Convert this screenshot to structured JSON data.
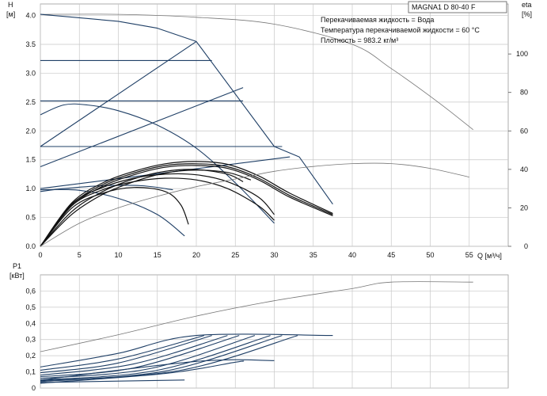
{
  "title": "MAGNA1 D 80-40 F",
  "info_lines": [
    "Перекачиваемая жидкость = Вода",
    "Температура перекачиваемой жидкости = 60 °C",
    "Плотность = 983.2 кг/м³"
  ],
  "chart_data": [
    {
      "type": "line",
      "panel": "head",
      "xlabel": "Q [м³/ч]",
      "ylabel_lines": [
        "H",
        "[м]"
      ],
      "y2label_lines": [
        "eta",
        "[%]"
      ],
      "xlim": [
        0,
        60
      ],
      "ylim": [
        0,
        4.2
      ],
      "y2lim": [
        0,
        126
      ],
      "xticks": [
        0,
        5,
        10,
        15,
        20,
        25,
        30,
        35,
        40,
        45,
        50,
        55
      ],
      "yticks": [
        0.0,
        0.5,
        1.0,
        1.5,
        2.0,
        2.5,
        3.0,
        3.5,
        4.0
      ],
      "ytick_labels": [
        "0.0",
        "0.5",
        "1.0",
        "1.5",
        "2.0",
        "2.5",
        "3.0",
        "3.5",
        "4.0"
      ],
      "y2ticks": [
        0,
        20,
        40,
        60,
        80,
        100
      ],
      "grid": true,
      "series": [
        {
          "role": "max-curve",
          "color": "#777777",
          "points": [
            [
              0,
              4.02
            ],
            [
              10,
              4.02
            ],
            [
              20,
              3.97
            ],
            [
              30,
              3.85
            ],
            [
              40,
              3.5
            ],
            [
              45,
              3.08
            ],
            [
              51,
              2.5
            ],
            [
              55.5,
              2.02
            ]
          ]
        },
        {
          "role": "envelope",
          "color": "#1f3f66",
          "points": [
            [
              0,
              4.02
            ],
            [
              10,
              3.9
            ],
            [
              15,
              3.78
            ],
            [
              20,
              3.55
            ],
            [
              30,
              1.73
            ],
            [
              33.2,
              1.55
            ],
            [
              37.5,
              0.73
            ]
          ]
        },
        {
          "role": "const-curve",
          "color": "#1f3f66",
          "points": [
            [
              0,
              3.22
            ],
            [
              22,
              3.22
            ]
          ]
        },
        {
          "role": "const-curve",
          "color": "#1f3f66",
          "points": [
            [
              0,
              2.52
            ],
            [
              26,
              2.52
            ]
          ]
        },
        {
          "role": "const-curve",
          "color": "#1f3f66",
          "points": [
            [
              0,
              1.73
            ],
            [
              31,
              1.73
            ]
          ]
        },
        {
          "role": "prop-curve",
          "color": "#1f3f66",
          "points": [
            [
              0,
              1.73
            ],
            [
              20,
              3.55
            ]
          ]
        },
        {
          "role": "prop-curve",
          "color": "#1f3f66",
          "points": [
            [
              0,
              1.38
            ],
            [
              26,
              2.75
            ]
          ]
        },
        {
          "role": "prop-curve",
          "color": "#1f3f66",
          "points": [
            [
              0,
              1.0
            ],
            [
              32,
              1.55
            ]
          ]
        },
        {
          "role": "speed-curve",
          "color": "#1f3f66",
          "points": [
            [
              0,
              2.28
            ],
            [
              3,
              2.45
            ],
            [
              6,
              2.45
            ],
            [
              10,
              2.35
            ],
            [
              15,
              2.1
            ],
            [
              20,
              1.7
            ],
            [
              25,
              1.1
            ],
            [
              30,
              0.4
            ]
          ]
        },
        {
          "role": "speed-curve",
          "color": "#1f3f66",
          "points": [
            [
              0,
              0.98
            ],
            [
              5,
              0.97
            ],
            [
              10,
              0.83
            ],
            [
              15,
              0.55
            ],
            [
              18.5,
              0.18
            ]
          ]
        },
        {
          "role": "speed-curve",
          "color": "#1f3f66",
          "points": [
            [
              0,
              0.95
            ],
            [
              3,
              1.0
            ],
            [
              8,
              1.05
            ],
            [
              13,
              1.05
            ],
            [
              17,
              0.98
            ]
          ]
        },
        {
          "role": "op-curve",
          "color": "#111111",
          "points": [
            [
              0,
              0
            ],
            [
              4,
              0.75
            ],
            [
              8,
              1.1
            ],
            [
              12,
              1.3
            ],
            [
              16,
              1.43
            ],
            [
              20,
              1.47
            ],
            [
              24,
              1.42
            ],
            [
              28,
              1.22
            ],
            [
              32,
              0.92
            ],
            [
              37.5,
              0.57
            ]
          ]
        },
        {
          "role": "op-curve",
          "color": "#111111",
          "points": [
            [
              0,
              0
            ],
            [
              4,
              0.72
            ],
            [
              8,
              1.07
            ],
            [
              12,
              1.27
            ],
            [
              16,
              1.4
            ],
            [
              20,
              1.43
            ],
            [
              24,
              1.38
            ],
            [
              28,
              1.18
            ],
            [
              32,
              0.88
            ],
            [
              37.5,
              0.55
            ]
          ]
        },
        {
          "role": "op-curve",
          "color": "#111111",
          "points": [
            [
              0,
              0
            ],
            [
              4,
              0.7
            ],
            [
              8,
              1.04
            ],
            [
              12,
              1.24
            ],
            [
              16,
              1.37
            ],
            [
              20,
              1.4
            ],
            [
              24,
              1.35
            ],
            [
              28,
              1.15
            ],
            [
              32,
              0.85
            ],
            [
              37.5,
              0.53
            ]
          ]
        },
        {
          "role": "op-curve",
          "color": "#111111",
          "points": [
            [
              0,
              0
            ],
            [
              4,
              0.73
            ],
            [
              8,
              1.02
            ],
            [
              12,
              1.18
            ],
            [
              16,
              1.25
            ],
            [
              20,
              1.24
            ],
            [
              24,
              1.12
            ],
            [
              28,
              0.85
            ],
            [
              30,
              0.55
            ]
          ]
        },
        {
          "role": "op-curve",
          "color": "#111111",
          "points": [
            [
              0,
              0
            ],
            [
              4,
              0.7
            ],
            [
              8,
              0.98
            ],
            [
              12,
              1.12
            ],
            [
              16,
              1.18
            ],
            [
              20,
              1.15
            ],
            [
              24,
              1.0
            ],
            [
              28,
              0.7
            ],
            [
              30,
              0.45
            ]
          ]
        },
        {
          "role": "op-curve",
          "color": "#111111",
          "points": [
            [
              0,
              0
            ],
            [
              4,
              0.66
            ],
            [
              8,
              0.92
            ],
            [
              12,
              1.02
            ],
            [
              16,
              0.95
            ],
            [
              18,
              0.72
            ],
            [
              19,
              0.38
            ]
          ]
        },
        {
          "role": "op-curve",
          "color": "#111111",
          "points": [
            [
              0,
              0
            ],
            [
              4,
              0.6
            ],
            [
              8,
              0.95
            ],
            [
              12,
              1.17
            ],
            [
              16,
              1.3
            ],
            [
              20,
              1.33
            ],
            [
              24,
              1.25
            ],
            [
              26,
              1.12
            ]
          ]
        },
        {
          "role": "op-curve",
          "color": "#111111",
          "points": [
            [
              0,
              0
            ],
            [
              4,
              0.55
            ],
            [
              8,
              0.9
            ],
            [
              12,
              1.12
            ],
            [
              16,
              1.27
            ],
            [
              20,
              1.32
            ],
            [
              24,
              1.28
            ],
            [
              27,
              1.15
            ]
          ]
        },
        {
          "role": "efficiency",
          "axis": "y2",
          "color": "#777777",
          "points": [
            [
              0,
              0
            ],
            [
              5,
              12
            ],
            [
              10,
              20
            ],
            [
              15,
              26
            ],
            [
              20,
              31
            ],
            [
              25,
              35
            ],
            [
              30,
              39
            ],
            [
              35,
              41.5
            ],
            [
              40,
              43
            ],
            [
              45,
              43
            ],
            [
              50,
              40.5
            ],
            [
              55,
              36
            ]
          ]
        }
      ]
    },
    {
      "type": "line",
      "panel": "power",
      "xlabel": "",
      "ylabel_lines": [
        "P1",
        "[кВт]"
      ],
      "xlim": [
        0,
        60
      ],
      "ylim": [
        0,
        0.7
      ],
      "xticks": [
        0,
        5,
        10,
        15,
        20,
        25,
        30,
        35,
        40,
        45,
        50,
        55
      ],
      "yticks": [
        0,
        0.1,
        0.2,
        0.3,
        0.4,
        0.5,
        0.6
      ],
      "ytick_labels": [
        "0",
        "0,1",
        "0,2",
        "0,3",
        "0,4",
        "0,5",
        "0,6"
      ],
      "grid": true,
      "series": [
        {
          "role": "max-power",
          "color": "#777777",
          "points": [
            [
              0,
              0.225
            ],
            [
              10,
              0.33
            ],
            [
              20,
              0.445
            ],
            [
              30,
              0.54
            ],
            [
              40,
              0.615
            ],
            [
              45,
              0.655
            ],
            [
              55.5,
              0.655
            ]
          ]
        },
        {
          "role": "power-curve",
          "color": "#1f3f66",
          "points": [
            [
              0,
              0.13
            ],
            [
              10,
              0.215
            ],
            [
              20,
              0.325
            ],
            [
              37.5,
              0.325
            ]
          ]
        },
        {
          "role": "power-curve",
          "color": "#1f3f66",
          "points": [
            [
              0,
              0.11
            ],
            [
              10,
              0.18
            ],
            [
              21,
              0.325
            ]
          ]
        },
        {
          "role": "power-curve",
          "color": "#1f3f66",
          "points": [
            [
              0,
              0.095
            ],
            [
              10,
              0.155
            ],
            [
              22,
              0.325
            ]
          ]
        },
        {
          "role": "power-curve",
          "color": "#1f3f66",
          "points": [
            [
              0,
              0.08
            ],
            [
              12,
              0.15
            ],
            [
              24,
              0.325
            ]
          ]
        },
        {
          "role": "power-curve",
          "color": "#1f3f66",
          "points": [
            [
              0,
              0.07
            ],
            [
              12,
              0.125
            ],
            [
              25.5,
              0.325
            ]
          ]
        },
        {
          "role": "power-curve",
          "color": "#1f3f66",
          "points": [
            [
              0,
              0.06
            ],
            [
              14,
              0.12
            ],
            [
              27.5,
              0.325
            ]
          ]
        },
        {
          "role": "power-curve",
          "color": "#1f3f66",
          "points": [
            [
              0,
              0.05
            ],
            [
              15,
              0.11
            ],
            [
              29.5,
              0.325
            ]
          ]
        },
        {
          "role": "power-curve",
          "color": "#1f3f66",
          "points": [
            [
              0,
              0.045
            ],
            [
              16,
              0.105
            ],
            [
              31,
              0.325
            ]
          ]
        },
        {
          "role": "power-curve",
          "color": "#1f3f66",
          "points": [
            [
              0,
              0.04
            ],
            [
              18,
              0.11
            ],
            [
              33,
              0.325
            ]
          ]
        },
        {
          "role": "power-curve",
          "color": "#1f3f66",
          "points": [
            [
              0,
              0.05
            ],
            [
              20,
              0.165
            ],
            [
              30,
              0.17
            ]
          ]
        },
        {
          "role": "power-curve",
          "color": "#1f3f66",
          "points": [
            [
              0,
              0.035
            ],
            [
              18.5,
              0.05
            ]
          ]
        },
        {
          "role": "power-curve",
          "color": "#1f3f66",
          "points": [
            [
              0,
              0.03
            ],
            [
              16,
              0.09
            ],
            [
              25,
              0.16
            ],
            [
              26,
              0.165
            ]
          ]
        }
      ]
    }
  ]
}
